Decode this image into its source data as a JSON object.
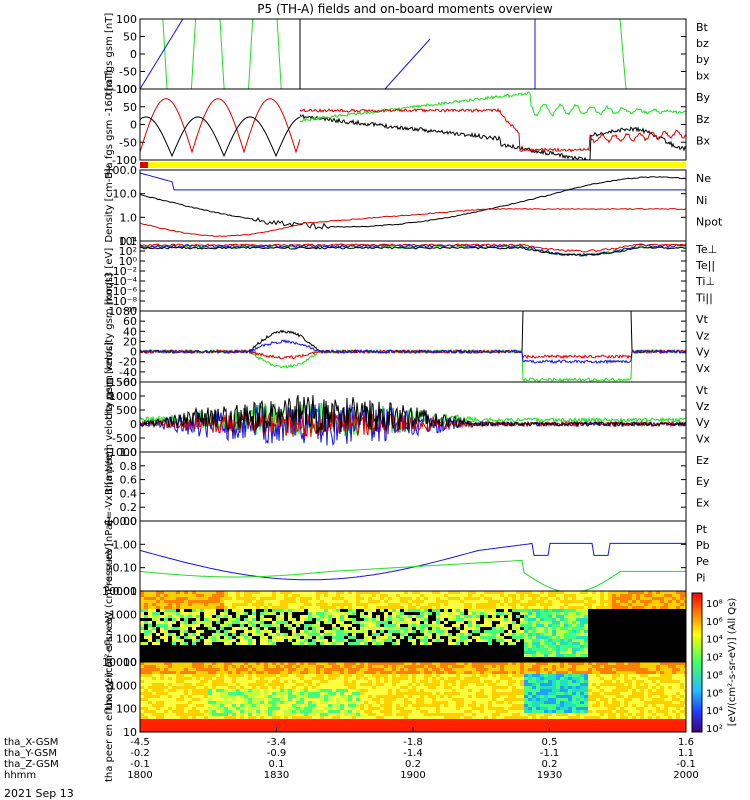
{
  "title": "P5 (TH-A) fields and on-board moments overview",
  "date_label": "2021 Sep 13",
  "colors": {
    "black": "#000000",
    "red": "#dd0000",
    "green": "#22dd22",
    "blue": "#1515dd",
    "yellow": "#ffff00"
  },
  "chart_data": [
    {
      "type": "line",
      "ylabel": "tha fgs gsm [nT]",
      "ylim": [
        -100,
        100
      ],
      "y_ticks": [
        "100",
        "50",
        "0",
        "-50",
        "-100"
      ],
      "legend": [
        {
          "name": "Bt",
          "color": "#000000"
        },
        {
          "name": "bz",
          "color": "#dd0000"
        },
        {
          "name": "by",
          "color": "#22dd22"
        },
        {
          "name": "bx",
          "color": "#1515dd"
        }
      ]
    },
    {
      "type": "line",
      "ylabel": "tha fgs gsm -160 [nT]",
      "ylim": [
        -110,
        110
      ],
      "y_ticks": [
        "100",
        "50",
        "0",
        "-50",
        "-100"
      ],
      "legend": [
        {
          "name": "By",
          "color": "#22dd22"
        },
        {
          "name": "Bz",
          "color": "#dd0000"
        },
        {
          "name": "Bx",
          "color": "#000000"
        }
      ]
    },
    {
      "type": "line",
      "ylabel": "Density [cm-3]",
      "scale": "log",
      "y_ticks": [
        "100.0",
        "10.0",
        "1.0",
        "0.1"
      ],
      "legend": [
        {
          "name": "Ne",
          "color": "#dd0000"
        },
        {
          "name": "Ni",
          "color": "#000000"
        },
        {
          "name": "Npot",
          "color": "#1515dd"
        }
      ]
    },
    {
      "type": "line",
      "ylabel": "moqt3 [eV]",
      "scale": "log",
      "y_ticks": [
        "10⁴",
        "10²",
        "10⁰",
        "10⁻²",
        "10⁻⁴",
        "10⁻⁶",
        "10⁻⁸",
        "10⁻¹⁰"
      ],
      "legend": [
        {
          "name": "Te⊥",
          "color": "#dd0000"
        },
        {
          "name": "Te||",
          "color": "#000000"
        },
        {
          "name": "Ti⊥",
          "color": "#1515dd"
        },
        {
          "name": "Ti||",
          "color": "#22dd22"
        }
      ]
    },
    {
      "type": "line",
      "ylabel": "tha peim velocity gsm [km/s]",
      "ylim": [
        -60,
        80
      ],
      "y_ticks": [
        "80",
        "60",
        "40",
        "20",
        "0",
        "-20",
        "-40",
        "-60"
      ],
      "legend": [
        {
          "name": "Vt",
          "color": "#000000"
        },
        {
          "name": "Vz",
          "color": "#dd0000"
        },
        {
          "name": "Vy",
          "color": "#22dd22"
        },
        {
          "name": "Vx",
          "color": "#1515dd"
        }
      ]
    },
    {
      "type": "line",
      "ylabel": "tha peem velocity gsm [km/s]",
      "ylim": [
        -1000,
        1500
      ],
      "y_ticks": [
        "1500",
        "1000",
        "500",
        "0",
        "-500",
        "-1000"
      ],
      "legend": [
        {
          "name": "Vt",
          "color": "#000000"
        },
        {
          "name": "Vz",
          "color": "#dd0000"
        },
        {
          "name": "Vy",
          "color": "#22dd22"
        },
        {
          "name": "Vx",
          "color": "#1515dd"
        }
      ]
    },
    {
      "type": "line",
      "ylabel": "E=-VxB [mV/m]",
      "ylim": [
        0,
        1
      ],
      "y_ticks": [
        "1.0",
        "0.8",
        "0.6",
        "0.4",
        "0.2",
        "0.0"
      ],
      "legend": [
        {
          "name": "Ez",
          "color": "#dd0000"
        },
        {
          "name": "Ey",
          "color": "#22dd22"
        },
        {
          "name": "Ex",
          "color": "#1515dd"
        }
      ]
    },
    {
      "type": "line",
      "ylabel": "Pressure [nPa]",
      "scale": "log",
      "y_ticks": [
        "10.00",
        "1.00",
        "0.10",
        "0.01"
      ],
      "legend": [
        {
          "name": "Pt",
          "color": "#000000"
        },
        {
          "name": "Pb",
          "color": "#dd0000"
        },
        {
          "name": "Pe",
          "color": "#22dd22"
        },
        {
          "name": "Pi",
          "color": "#1515dd"
        }
      ]
    },
    {
      "type": "heatmap",
      "ylabel": "tha peir en eflux eV (cm²-s-sr-eV)",
      "scale": "log",
      "y_ticks": [
        "10000",
        "1000",
        "100",
        "10"
      ]
    },
    {
      "type": "heatmap",
      "ylabel": "tha peer en eflux eV (cm²-s-sr-eV)",
      "scale": "log",
      "y_ticks": [
        "10000",
        "1000",
        "100",
        "10"
      ]
    }
  ],
  "colorbar": {
    "ticks": [
      "10⁸",
      "10⁶",
      "10⁴",
      "10²",
      "10⁸",
      "10⁶",
      "10⁴",
      "10²"
    ],
    "label": "[eV/(cm²-s-sr-eV)] (All Qs)"
  },
  "x_axis": {
    "rows": [
      {
        "label": "tha_X-GSM",
        "values": [
          "-4.5",
          "-3.4",
          "-1.8",
          "0.5",
          "1.6"
        ]
      },
      {
        "label": "tha_Y-GSM",
        "values": [
          "-0.2",
          "-0.9",
          "-1.4",
          "-1.1",
          "1.1"
        ]
      },
      {
        "label": "tha_Z-GSM",
        "values": [
          "-0.1",
          "0.1",
          "0.2",
          "0.2",
          "-0.1"
        ]
      },
      {
        "label": "hhmm",
        "values": [
          "1800",
          "1830",
          "1900",
          "1930",
          "2000"
        ]
      }
    ]
  }
}
